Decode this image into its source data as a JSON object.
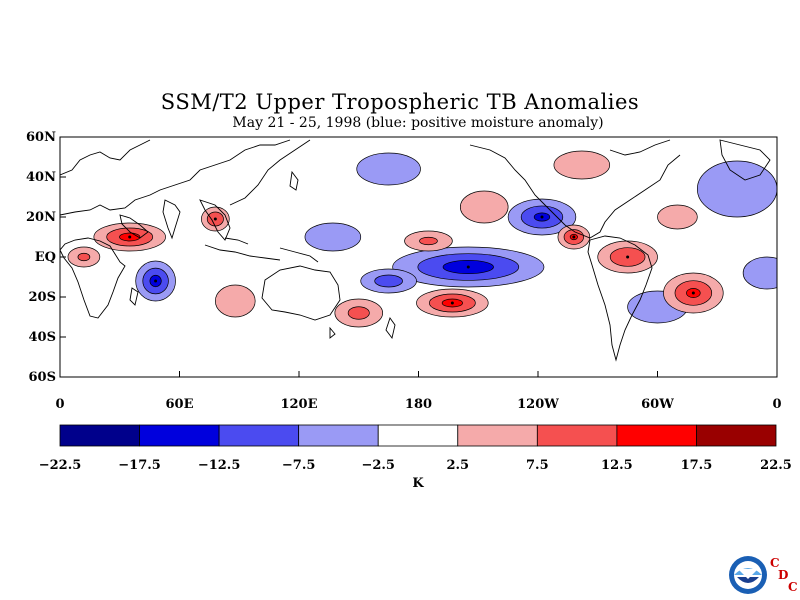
{
  "chart_data": {
    "type": "heatmap",
    "title": "SSM/T2 Upper Tropospheric TB Anomalies",
    "subtitle": "May 21 - 25, 1998 (blue: positive moisture anomaly)",
    "x_ticks": [
      "0",
      "60E",
      "120E",
      "180",
      "120W",
      "60W",
      "0"
    ],
    "y_ticks": [
      "60N",
      "40N",
      "20N",
      "EQ",
      "20S",
      "40S",
      "60S"
    ],
    "xlim": [
      0,
      360
    ],
    "ylim": [
      -60,
      60
    ],
    "colorbar": {
      "label": "K",
      "ticks": [
        "-22.5",
        "-17.5",
        "-12.5",
        "-7.5",
        "-2.5",
        "2.5",
        "7.5",
        "12.5",
        "17.5",
        "22.5"
      ],
      "colors": [
        "#00008b",
        "#0000dd",
        "#4b4bf0",
        "#9a9af5",
        "#ffffff",
        "#f5aaaa",
        "#f55050",
        "#ff0000",
        "#990000"
      ]
    },
    "anomalies": [
      {
        "lon": 205,
        "lat": -5,
        "value": -15,
        "rx": 38,
        "ry": 10
      },
      {
        "lon": 165,
        "lat": -12,
        "value": -10,
        "rx": 14,
        "ry": 6
      },
      {
        "lon": 137,
        "lat": 10,
        "value": -7,
        "rx": 14,
        "ry": 7
      },
      {
        "lon": 242,
        "lat": 20,
        "value": -13,
        "rx": 17,
        "ry": 9
      },
      {
        "lon": 48,
        "lat": -12,
        "value": -14,
        "rx": 10,
        "ry": 10
      },
      {
        "lon": 165,
        "lat": 44,
        "value": -6,
        "rx": 16,
        "ry": 8
      },
      {
        "lon": 340,
        "lat": 34,
        "value": -6,
        "rx": 20,
        "ry": 14
      },
      {
        "lon": 300,
        "lat": -25,
        "value": -5,
        "rx": 15,
        "ry": 8
      },
      {
        "lon": 355,
        "lat": -8,
        "value": -4,
        "rx": 12,
        "ry": 8
      },
      {
        "lon": 35,
        "lat": 10,
        "value": 14,
        "rx": 18,
        "ry": 7
      },
      {
        "lon": 12,
        "lat": 0,
        "value": 8,
        "rx": 8,
        "ry": 5
      },
      {
        "lon": 78,
        "lat": 19,
        "value": 12,
        "rx": 7,
        "ry": 6
      },
      {
        "lon": 185,
        "lat": 8,
        "value": 8,
        "rx": 12,
        "ry": 5
      },
      {
        "lon": 197,
        "lat": -23,
        "value": 14,
        "rx": 18,
        "ry": 7
      },
      {
        "lon": 258,
        "lat": 10,
        "value": 13,
        "rx": 8,
        "ry": 6
      },
      {
        "lon": 285,
        "lat": 0,
        "value": 12,
        "rx": 15,
        "ry": 8
      },
      {
        "lon": 318,
        "lat": -18,
        "value": 13,
        "rx": 15,
        "ry": 10
      },
      {
        "lon": 150,
        "lat": -28,
        "value": 9,
        "rx": 12,
        "ry": 7
      },
      {
        "lon": 310,
        "lat": 20,
        "value": 7,
        "rx": 10,
        "ry": 6
      },
      {
        "lon": 213,
        "lat": 25,
        "value": 5,
        "rx": 12,
        "ry": 8
      },
      {
        "lon": 262,
        "lat": 46,
        "value": 6,
        "rx": 14,
        "ry": 7
      },
      {
        "lon": 88,
        "lat": -22,
        "value": 5,
        "rx": 10,
        "ry": 8
      }
    ]
  },
  "logo": {
    "org": "NOAA",
    "letters": [
      "C",
      "D",
      "C"
    ]
  }
}
